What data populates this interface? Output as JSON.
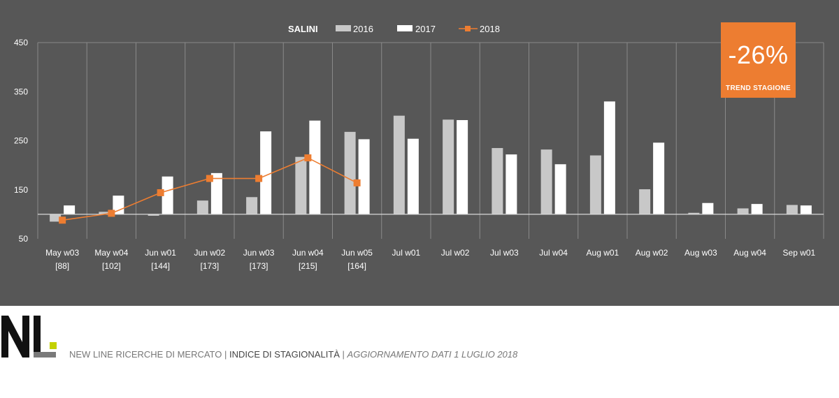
{
  "chart_data": {
    "type": "bar",
    "title": "SALINI",
    "categories": [
      "May w03",
      "May w04",
      "Jun w01",
      "Jun w02",
      "Jun w03",
      "Jun w04",
      "Jun w05",
      "Jul w01",
      "Jul w02",
      "Jul w03",
      "Jul w04",
      "Aug w01",
      "Aug w02",
      "Aug w03",
      "Aug w04",
      "Sep w01"
    ],
    "sublabels": [
      "[88]",
      "[102]",
      "[144]",
      "[173]",
      "[173]",
      "[215]",
      "[164]",
      "",
      "",
      "",
      "",
      "",
      "",
      "",
      "",
      ""
    ],
    "series": [
      {
        "name": "2016",
        "type": "bar",
        "color": "#C8C8C8",
        "values": [
          85,
          105,
          97,
          128,
          135,
          217,
          268,
          301,
          293,
          235,
          232,
          220,
          151,
          103,
          112,
          119
        ]
      },
      {
        "name": "2017",
        "type": "bar",
        "color": "#FFFFFF",
        "values": [
          118,
          138,
          177,
          184,
          269,
          291,
          253,
          254,
          292,
          222,
          202,
          330,
          246,
          123,
          121,
          118
        ]
      },
      {
        "name": "2018",
        "type": "line",
        "color": "#ED7D31",
        "values": [
          88,
          102,
          144,
          173,
          173,
          215,
          164,
          null,
          null,
          null,
          null,
          null,
          null,
          null,
          null,
          null
        ]
      }
    ],
    "baseline": 100,
    "ylim": [
      50,
      450
    ],
    "yticks": [
      50,
      150,
      250,
      350,
      450
    ],
    "xlabel": "",
    "ylabel": "",
    "legend": "top-center"
  },
  "trend": {
    "value": "-26%",
    "label": "TREND  STAGIONE",
    "color": "#ED7D31"
  },
  "footer": {
    "company": "NEW LINE RICERCHE DI MERCATO",
    "separator": " | ",
    "index": "INDICE DI STAGIONALITÀ",
    "update": "AGGIORNAMENTO DATI 1 LUGLIO 2018"
  },
  "logo": {
    "text": "NL",
    "accent_color": "#C3D100"
  }
}
